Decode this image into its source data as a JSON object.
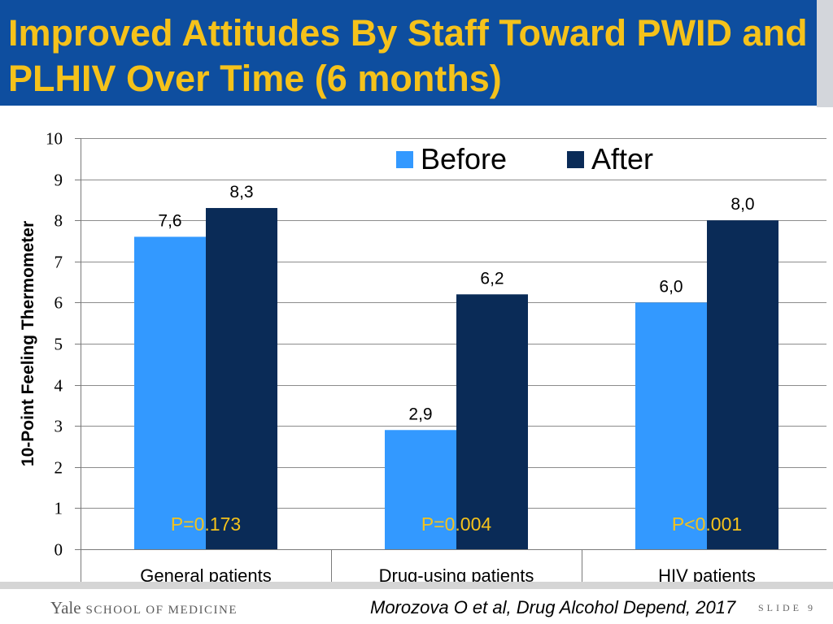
{
  "slide": {
    "title_lines": [
      "Improved Attitudes By Staff Toward PWID and",
      "PLHIV Over Time (6 months)"
    ],
    "theme": {
      "header_bg": "#0E4E9F",
      "title_color": "#F5C21B"
    }
  },
  "chart_data": {
    "type": "bar",
    "title": "",
    "xlabel": "",
    "ylabel": "10-Point Feeling Thermometer",
    "ylim": [
      0,
      10
    ],
    "yticks": [
      0,
      1,
      2,
      3,
      4,
      5,
      6,
      7,
      8,
      9,
      10
    ],
    "grid": true,
    "categories": [
      "General patients",
      "Drug-using patients",
      "HIV patients"
    ],
    "series": [
      {
        "name": "Before",
        "values": [
          7.6,
          2.9,
          6.0
        ],
        "labels": [
          "7,6",
          "2,9",
          "6,0"
        ],
        "color": "#3399FF"
      },
      {
        "name": "After",
        "values": [
          8.3,
          6.2,
          8.0
        ],
        "labels": [
          "8,3",
          "6,2",
          "8,0"
        ],
        "color": "#0A2B57"
      }
    ],
    "annotations": [
      "P=0.173",
      "P=0.004",
      "P<0.001"
    ],
    "annotation_color": "#F5C21B"
  },
  "footer": {
    "logo_yale": "Yale",
    "logo_school": "SCHOOL OF MEDICINE",
    "citation": "Morozova O et al, Drug Alcohol Depend, 2017",
    "slide_label": "SLIDE 9"
  }
}
